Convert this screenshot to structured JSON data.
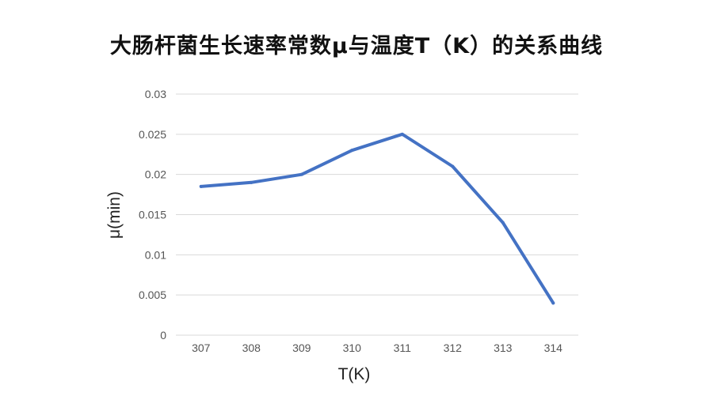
{
  "chart_data": {
    "type": "line",
    "title": "大肠杆菌生长速率常数μ与温度T（K）的关系曲线",
    "xlabel": "T(K)",
    "ylabel": "μ(min)",
    "categories": [
      "307",
      "308",
      "309",
      "310",
      "311",
      "312",
      "313",
      "314"
    ],
    "series": [
      {
        "values": [
          0.0185,
          0.019,
          0.02,
          0.023,
          0.025,
          0.021,
          0.014,
          0.004
        ],
        "color": "#4472C4"
      }
    ],
    "ylim": [
      0,
      0.03
    ],
    "yticks": [
      0,
      0.005,
      0.01,
      0.015,
      0.02,
      0.025,
      0.03
    ],
    "ytick_labels": [
      "0",
      "0.005",
      "0.01",
      "0.015",
      "0.02",
      "0.025",
      "0.03"
    ],
    "grid": true,
    "legend": "none"
  }
}
